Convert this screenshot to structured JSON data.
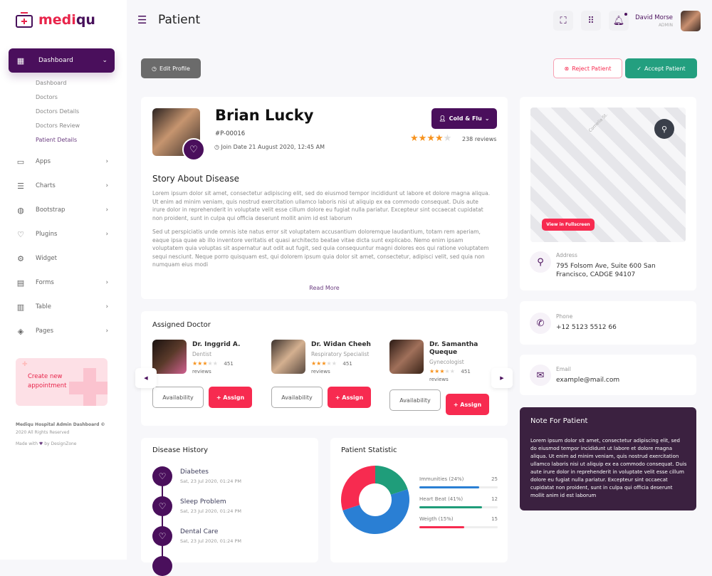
{
  "brand": {
    "name_a": "medi",
    "name_b": "qu"
  },
  "sidebar": {
    "active": {
      "label": "Dashboard",
      "icon": "dashboard-icon"
    },
    "sub_items": [
      {
        "label": "Dashboard"
      },
      {
        "label": "Doctors"
      },
      {
        "label": "Doctors Details"
      },
      {
        "label": "Doctors Review"
      },
      {
        "label": "Patient Details",
        "active": true
      }
    ],
    "items": [
      {
        "label": "Apps",
        "icon": "monitor-icon"
      },
      {
        "label": "Charts",
        "icon": "sliders-icon"
      },
      {
        "label": "Bootstrap",
        "icon": "globe-icon"
      },
      {
        "label": "Plugins",
        "icon": "heart-icon"
      },
      {
        "label": "Widget",
        "icon": "gear-icon"
      },
      {
        "label": "Forms",
        "icon": "form-icon"
      },
      {
        "label": "Table",
        "icon": "table-icon"
      },
      {
        "label": "Pages",
        "icon": "layers-icon"
      }
    ],
    "appointment": "Create new appointment",
    "footer_title": "Mediqu Hospital Admin Dashboard ©",
    "footer_rights": "2020 All Rights Reserved",
    "footer_made": "Made with",
    "footer_by": "by DesignZone"
  },
  "header": {
    "title": "Patient",
    "user_name": "David Morse",
    "user_role": "ADMIN"
  },
  "actions": {
    "edit": "Edit Profile",
    "reject": "Reject Patient",
    "accept": "Accept Patient"
  },
  "patient": {
    "name": "Brian Lucky",
    "id": "#P-00016",
    "join": "Join Date 21 August 2020, 12:45 AM",
    "tag": "Cold & Flu",
    "rating": 4,
    "reviews": "238 reviews",
    "story_title": "Story About Disease",
    "story_p1": "Lorem ipsum dolor sit amet, consectetur adipiscing elit, sed do eiusmod tempor incididunt ut labore et dolore magna aliqua. Ut enim ad minim veniam, quis nostrud exercitation ullamco laboris nisi ut aliquip ex ea commodo consequat. Duis aute irure dolor in reprehenderit in voluptate velit esse cillum dolore eu fugiat nulla pariatur. Excepteur sint occaecat cupidatat non proident, sunt in culpa qui officia deserunt mollit anim id est laborum",
    "story_p2": "Sed ut perspiciatis unde omnis iste natus error sit voluptatem accusantium doloremque laudantium, totam rem aperiam, eaque ipsa quae ab illo inventore veritatis et quasi architecto beatae vitae dicta sunt explicabo. Nemo enim ipsam voluptatem quia voluptas sit aspernatur aut odit aut fugit, sed quia consequuntur magni dolores eos qui ratione voluptatem sequi nesciunt. Neque porro quisquam est, qui dolorem ipsum quia dolor sit amet, consectetur, adipisci velit, sed quia non numquam eius modi",
    "read_more": "Read More"
  },
  "map": {
    "street": "Cornelia St.",
    "fullscreen": "View in Fullscreen"
  },
  "contact": {
    "address_label": "Address",
    "address": "795 Folsom Ave, Suite 600 San Francisco, CADGE 94107",
    "phone_label": "Phone",
    "phone": "+12 5123 5512 66",
    "email_label": "Email",
    "email": "example@mail.com"
  },
  "note": {
    "title": "Note For Patient",
    "text": "Lorem ipsum dolor sit amet, consectetur adipiscing elit, sed do eiusmod tempor incididunt ut labore et dolore magna aliqua. Ut enim ad minim veniam, quis nostrud exercitation ullamco laboris nisi ut aliquip ex ea commodo consequat. Duis aute irure dolor in reprehenderit in voluptate velit esse cillum dolore eu fugiat nulla pariatur. Excepteur sint occaecat cupidatat non proident, sunt in culpa qui officia deserunt mollit anim id est laborum"
  },
  "doctors": {
    "title": "Assigned Doctor",
    "availability": "Availability",
    "assign": "+ Assign",
    "list": [
      {
        "name": "Dr. Inggrid A.",
        "specialty": "Dentist",
        "rating": 3,
        "reviews": "451",
        "reviews_label": "reviews"
      },
      {
        "name": "Dr. Widan Cheeh",
        "specialty": "Respiratory Specialist",
        "rating": 3,
        "reviews": "451",
        "reviews_label": "reviews"
      },
      {
        "name": "Dr. Samantha Queque",
        "specialty": "Gynecologist",
        "rating": 3,
        "reviews": "451",
        "reviews_label": "reviews"
      }
    ]
  },
  "history": {
    "title": "Disease History",
    "items": [
      {
        "name": "Diabetes",
        "date": "Sat, 23 Jul 2020, 01:24 PM"
      },
      {
        "name": "Sleep Problem",
        "date": "Sat, 23 Jul 2020, 01:24 PM"
      },
      {
        "name": "Dental Care",
        "date": "Sat, 23 Jul 2020, 01:24 PM"
      }
    ]
  },
  "chart_data": {
    "type": "pie",
    "title": "Patient Statistic",
    "donut": [
      {
        "color": "#2a7fd4",
        "value": 50
      },
      {
        "color": "#f72b50",
        "value": 30
      },
      {
        "color": "#1f9d7a",
        "value": 20
      }
    ],
    "bars": [
      {
        "label": "Immunities (24%)",
        "value": "25",
        "fill_pct": 76,
        "color": "#2a7fd4"
      },
      {
        "label": "Heart Beat (41%)",
        "value": "12",
        "fill_pct": 80,
        "color": "#1f9d7a"
      },
      {
        "label": "Weigth (15%)",
        "value": "15",
        "fill_pct": 57,
        "color": "#f72b50"
      }
    ]
  },
  "colors": {
    "primary": "#4a0f5c",
    "accent": "#f72b50",
    "success": "#239f7f",
    "note_bg": "#3b2140"
  }
}
